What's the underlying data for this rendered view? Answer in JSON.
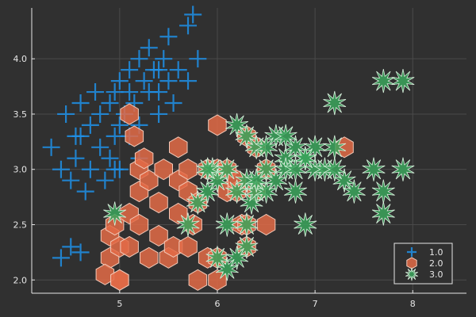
{
  "chart_data": {
    "type": "scatter",
    "title": "",
    "xlabel": "",
    "ylabel": "",
    "xlim": [
      4.1,
      8.55
    ],
    "ylim": [
      1.88,
      4.46
    ],
    "xticks": [
      5,
      6,
      7,
      8
    ],
    "yticks": [
      2.0,
      2.5,
      3.0,
      3.5,
      4.0
    ],
    "xtick_labels": [
      "5",
      "6",
      "7",
      "8"
    ],
    "ytick_labels": [
      "2.0",
      "2.5",
      "3.0",
      "3.5",
      "4.0"
    ],
    "grid": true,
    "legend_position": "bottom-right",
    "background": "#303030",
    "series": [
      {
        "name": "1.0",
        "marker": "cross",
        "color": "#1e90e8",
        "points": [
          [
            4.3,
            3.2
          ],
          [
            4.4,
            3.0
          ],
          [
            4.45,
            3.5
          ],
          [
            4.5,
            2.9
          ],
          [
            4.55,
            3.1
          ],
          [
            4.6,
            3.3
          ],
          [
            4.6,
            3.6
          ],
          [
            4.65,
            2.8
          ],
          [
            4.7,
            3.4
          ],
          [
            4.7,
            3.0
          ],
          [
            4.75,
            3.7
          ],
          [
            4.8,
            3.2
          ],
          [
            4.8,
            3.5
          ],
          [
            4.85,
            2.9
          ],
          [
            4.9,
            3.1
          ],
          [
            4.9,
            3.6
          ],
          [
            4.95,
            3.3
          ],
          [
            5.0,
            3.4
          ],
          [
            5.0,
            3.0
          ],
          [
            5.0,
            3.8
          ],
          [
            5.05,
            3.5
          ],
          [
            5.1,
            3.7
          ],
          [
            5.1,
            3.9
          ],
          [
            5.1,
            3.3
          ],
          [
            5.15,
            3.6
          ],
          [
            5.2,
            4.0
          ],
          [
            5.2,
            3.4
          ],
          [
            5.25,
            3.8
          ],
          [
            5.3,
            4.1
          ],
          [
            5.3,
            3.7
          ],
          [
            5.35,
            3.9
          ],
          [
            5.4,
            3.9
          ],
          [
            5.4,
            3.5
          ],
          [
            5.45,
            4.0
          ],
          [
            5.5,
            3.8
          ],
          [
            5.5,
            4.2
          ],
          [
            5.55,
            3.6
          ],
          [
            5.6,
            3.9
          ],
          [
            5.7,
            3.8
          ],
          [
            5.7,
            4.3
          ],
          [
            5.75,
            4.4
          ],
          [
            5.8,
            4.0
          ],
          [
            5.4,
            3.7
          ],
          [
            5.2,
            3.1
          ],
          [
            4.95,
            3.7
          ],
          [
            4.55,
            3.3
          ],
          [
            4.5,
            2.3
          ],
          [
            4.6,
            2.25
          ],
          [
            4.4,
            2.2
          ],
          [
            4.95,
            3.0
          ]
        ]
      },
      {
        "name": "2.0",
        "marker": "hexagon",
        "color": "#e36b46",
        "points": [
          [
            4.9,
            2.4
          ],
          [
            4.9,
            2.2
          ],
          [
            4.95,
            2.5
          ],
          [
            5.0,
            2.3
          ],
          [
            5.0,
            2.0
          ],
          [
            4.85,
            2.05
          ],
          [
            5.1,
            2.3
          ],
          [
            5.1,
            2.6
          ],
          [
            5.2,
            2.8
          ],
          [
            5.2,
            2.5
          ],
          [
            5.2,
            3.0
          ],
          [
            5.25,
            3.1
          ],
          [
            5.3,
            2.9
          ],
          [
            5.3,
            2.2
          ],
          [
            5.4,
            2.7
          ],
          [
            5.4,
            2.4
          ],
          [
            5.45,
            3.0
          ],
          [
            5.5,
            2.2
          ],
          [
            5.55,
            2.3
          ],
          [
            5.6,
            2.6
          ],
          [
            5.6,
            2.9
          ],
          [
            5.6,
            3.2
          ],
          [
            5.7,
            2.3
          ],
          [
            5.7,
            2.8
          ],
          [
            5.7,
            3.0
          ],
          [
            5.75,
            2.5
          ],
          [
            5.8,
            2.7
          ],
          [
            5.8,
            2.0
          ],
          [
            5.9,
            3.0
          ],
          [
            5.9,
            2.2
          ],
          [
            6.0,
            3.0
          ],
          [
            6.0,
            2.2
          ],
          [
            6.0,
            3.4
          ],
          [
            6.1,
            2.8
          ],
          [
            6.1,
            3.0
          ],
          [
            6.2,
            2.8
          ],
          [
            6.2,
            2.9
          ],
          [
            6.25,
            2.5
          ],
          [
            6.3,
            2.5
          ],
          [
            6.3,
            2.3
          ],
          [
            6.3,
            3.3
          ],
          [
            6.4,
            2.8
          ],
          [
            6.4,
            3.2
          ],
          [
            6.5,
            3.0
          ],
          [
            6.5,
            2.5
          ],
          [
            5.1,
            3.5
          ],
          [
            5.0,
            2.0
          ],
          [
            5.15,
            3.3
          ],
          [
            6.0,
            2.0
          ],
          [
            7.3,
            3.2
          ]
        ]
      },
      {
        "name": "3.0",
        "marker": "star",
        "color": "#3ba55c",
        "points": [
          [
            4.95,
            2.6
          ],
          [
            5.7,
            2.5
          ],
          [
            5.8,
            2.7
          ],
          [
            5.9,
            2.8
          ],
          [
            5.95,
            3.0
          ],
          [
            6.0,
            2.9
          ],
          [
            6.1,
            2.5
          ],
          [
            6.1,
            3.0
          ],
          [
            6.2,
            2.8
          ],
          [
            6.2,
            3.4
          ],
          [
            6.3,
            2.9
          ],
          [
            6.3,
            3.3
          ],
          [
            6.35,
            2.7
          ],
          [
            6.4,
            3.2
          ],
          [
            6.4,
            2.8
          ],
          [
            6.5,
            3.0
          ],
          [
            6.5,
            2.8
          ],
          [
            6.6,
            2.9
          ],
          [
            6.6,
            3.3
          ],
          [
            6.7,
            3.1
          ],
          [
            6.7,
            3.0
          ],
          [
            6.8,
            2.8
          ],
          [
            6.8,
            3.2
          ],
          [
            6.9,
            3.1
          ],
          [
            6.9,
            2.5
          ],
          [
            7.0,
            3.2
          ],
          [
            7.0,
            3.0
          ],
          [
            7.1,
            3.0
          ],
          [
            7.2,
            3.6
          ],
          [
            7.2,
            3.2
          ],
          [
            7.3,
            2.9
          ],
          [
            7.4,
            2.8
          ],
          [
            7.6,
            3.0
          ],
          [
            7.7,
            3.8
          ],
          [
            7.7,
            2.6
          ],
          [
            7.7,
            2.8
          ],
          [
            7.9,
            3.8
          ],
          [
            7.9,
            3.0
          ],
          [
            6.3,
            2.3
          ],
          [
            6.2,
            2.2
          ],
          [
            6.1,
            2.1
          ],
          [
            6.0,
            2.2
          ],
          [
            5.9,
            3.0
          ],
          [
            6.7,
            3.3
          ],
          [
            6.9,
            3.1
          ],
          [
            7.2,
            3.0
          ],
          [
            6.8,
            3.0
          ],
          [
            6.3,
            2.5
          ],
          [
            6.4,
            2.9
          ],
          [
            6.5,
            3.2
          ]
        ]
      }
    ]
  }
}
